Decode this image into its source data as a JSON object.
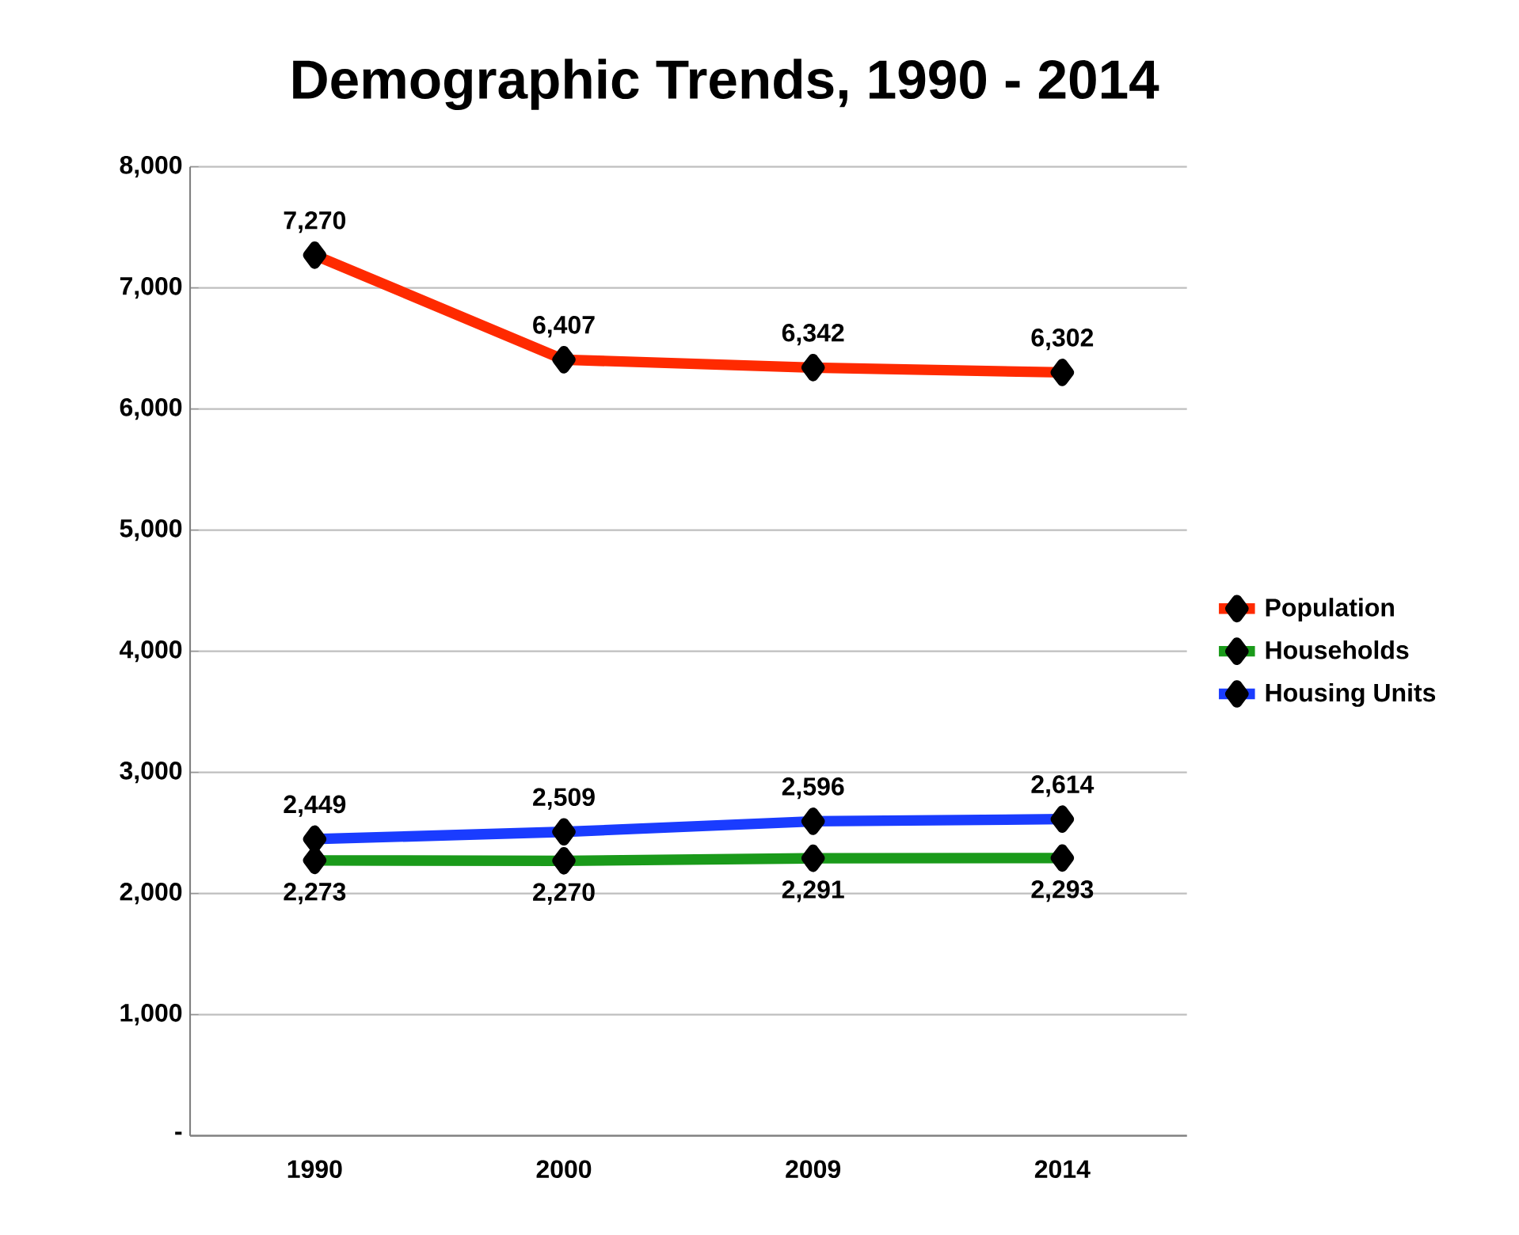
{
  "chart_data": {
    "type": "line",
    "title": "Demographic Trends, 1990 - 2014",
    "categories": [
      "1990",
      "2000",
      "2009",
      "2014"
    ],
    "ylim": [
      0,
      8000
    ],
    "yticks": [
      {
        "value": 0,
        "label": "-"
      },
      {
        "value": 1000,
        "label": "1,000"
      },
      {
        "value": 2000,
        "label": "2,000"
      },
      {
        "value": 3000,
        "label": "3,000"
      },
      {
        "value": 4000,
        "label": "4,000"
      },
      {
        "value": 5000,
        "label": "5,000"
      },
      {
        "value": 6000,
        "label": "6,000"
      },
      {
        "value": 7000,
        "label": "7,000"
      },
      {
        "value": 8000,
        "label": "8,000"
      }
    ],
    "grid": "y",
    "legend": "right",
    "marker": "diamond",
    "line_style": "solid",
    "series": [
      {
        "name": "Population",
        "color": "#ff2a00",
        "values": [
          7270,
          6407,
          6342,
          6302
        ],
        "value_labels": [
          "7,270",
          "6,407",
          "6,342",
          "6,302"
        ]
      },
      {
        "name": "Households",
        "color": "#1a9a1a",
        "values": [
          2273,
          2270,
          2291,
          2293
        ],
        "value_labels": [
          "2,273",
          "2,270",
          "2,291",
          "2,293"
        ]
      },
      {
        "name": "Housing Units",
        "color": "#1a3cff",
        "values": [
          2449,
          2509,
          2596,
          2614
        ],
        "value_labels": [
          "2,449",
          "2,509",
          "2,596",
          "2,614"
        ]
      }
    ]
  }
}
